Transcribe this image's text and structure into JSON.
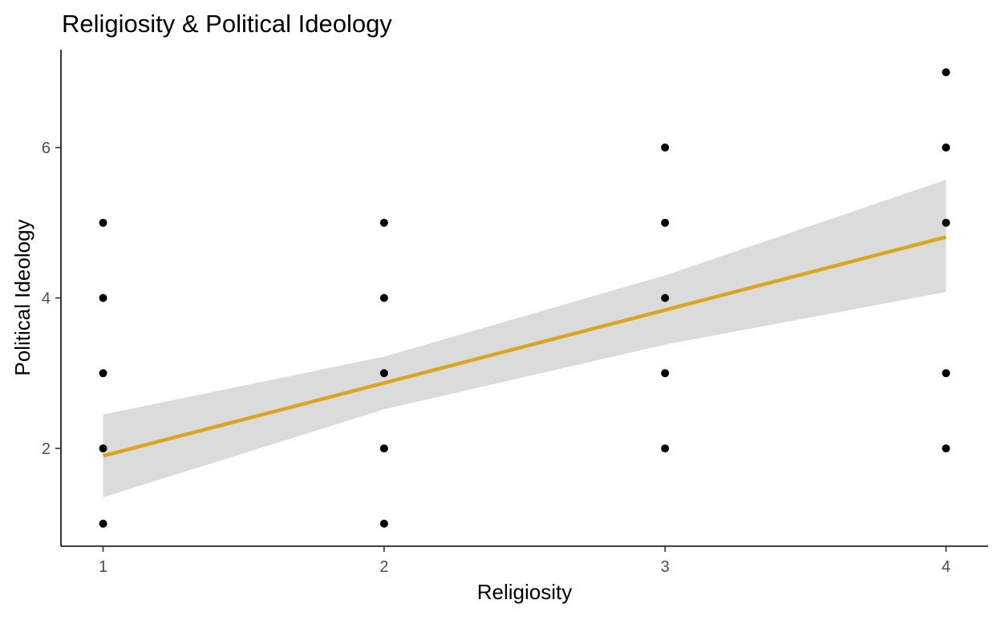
{
  "chart_data": {
    "type": "scatter",
    "title": "Religiosity & Political Ideology",
    "xlabel": "Religiosity",
    "ylabel": "Political Ideology",
    "xlim": [
      0.85,
      4.15
    ],
    "ylim": [
      0.7,
      7.3
    ],
    "x_ticks": [
      1,
      2,
      3,
      4
    ],
    "y_ticks": [
      2,
      4,
      6
    ],
    "grid": false,
    "legend": "none",
    "point_color": "#000000",
    "points": [
      {
        "x": 1,
        "y": 1
      },
      {
        "x": 1,
        "y": 2
      },
      {
        "x": 1,
        "y": 3
      },
      {
        "x": 1,
        "y": 4
      },
      {
        "x": 1,
        "y": 5
      },
      {
        "x": 2,
        "y": 1
      },
      {
        "x": 2,
        "y": 2
      },
      {
        "x": 2,
        "y": 3
      },
      {
        "x": 2,
        "y": 4
      },
      {
        "x": 2,
        "y": 5
      },
      {
        "x": 3,
        "y": 2
      },
      {
        "x": 3,
        "y": 3
      },
      {
        "x": 3,
        "y": 4
      },
      {
        "x": 3,
        "y": 5
      },
      {
        "x": 3,
        "y": 6
      },
      {
        "x": 4,
        "y": 2
      },
      {
        "x": 4,
        "y": 3
      },
      {
        "x": 4,
        "y": 5
      },
      {
        "x": 4,
        "y": 6
      },
      {
        "x": 4,
        "y": 7
      }
    ],
    "trend_line": {
      "method": "linear",
      "color": "#DAA520",
      "band_color": "#D9D9D9",
      "x": [
        1,
        2,
        3,
        4
      ],
      "y": [
        1.9,
        2.87,
        3.84,
        4.81
      ],
      "lower": [
        1.35,
        2.52,
        3.38,
        4.08
      ],
      "upper": [
        2.45,
        3.22,
        4.3,
        5.57
      ]
    }
  }
}
